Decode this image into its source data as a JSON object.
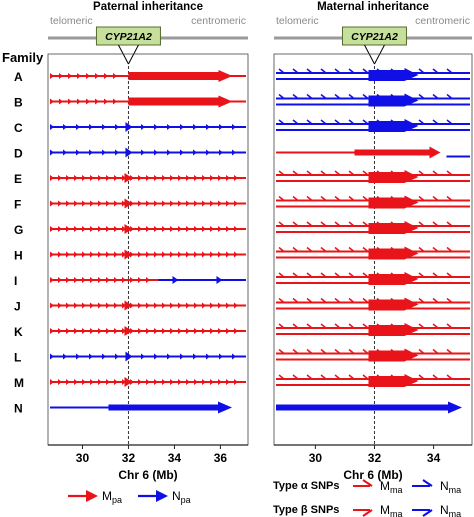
{
  "colors": {
    "red": "#e8141a",
    "blue": "#1010e6",
    "gene_fill": "#c6df9a",
    "chrom": "#9a9a9a",
    "axis": "#222222"
  },
  "family_header": "Family",
  "families": [
    "A",
    "B",
    "C",
    "D",
    "E",
    "F",
    "G",
    "H",
    "I",
    "J",
    "K",
    "L",
    "M",
    "N"
  ],
  "gene_name": "CYP21A2",
  "telomeric_label": "telomeric",
  "centromeric_label": "centromeric",
  "panels": [
    {
      "title": "Paternal inheritance",
      "xlim": [
        28.5,
        37.2
      ],
      "ticks": [
        30,
        32,
        34,
        36
      ],
      "xlabel": "Chr 6 (Mb)",
      "gene_pos": 32,
      "tracks": [
        {
          "family": "A",
          "style": "red_split"
        },
        {
          "family": "B",
          "style": "red_split"
        },
        {
          "family": "C",
          "style": "blue_dense"
        },
        {
          "family": "D",
          "style": "blue_dense"
        },
        {
          "family": "E",
          "style": "red_dense"
        },
        {
          "family": "F",
          "style": "red_dense"
        },
        {
          "family": "G",
          "style": "red_dense"
        },
        {
          "family": "H",
          "style": "red_dense"
        },
        {
          "family": "I",
          "style": "red_then_blue"
        },
        {
          "family": "J",
          "style": "red_dense"
        },
        {
          "family": "K",
          "style": "red_dense"
        },
        {
          "family": "L",
          "style": "blue_dense"
        },
        {
          "family": "M",
          "style": "red_dense"
        },
        {
          "family": "N",
          "style": "blue_thick"
        }
      ]
    },
    {
      "title": "Maternal inheritance",
      "xlim": [
        28.6,
        35.3
      ],
      "ticks": [
        30,
        32,
        34
      ],
      "xlabel": "Chr 6 (Mb)",
      "gene_pos": 32,
      "tracks": [
        {
          "family": "A",
          "style": "blue_double"
        },
        {
          "family": "B",
          "style": "blue_double"
        },
        {
          "family": "C",
          "style": "blue_double"
        },
        {
          "family": "D",
          "style": "red_single"
        },
        {
          "family": "E",
          "style": "red_double"
        },
        {
          "family": "F",
          "style": "red_double"
        },
        {
          "family": "G",
          "style": "red_double"
        },
        {
          "family": "H",
          "style": "red_double"
        },
        {
          "family": "I",
          "style": "red_double"
        },
        {
          "family": "J",
          "style": "red_double"
        },
        {
          "family": "K",
          "style": "red_double"
        },
        {
          "family": "L",
          "style": "red_double"
        },
        {
          "family": "M",
          "style": "red_double"
        },
        {
          "family": "N",
          "style": "blue_single"
        }
      ]
    }
  ],
  "legend": {
    "m_pa": "M",
    "m_pa_sub": "pa",
    "n_pa": "N",
    "n_pa_sub": "pa",
    "type_alpha": "Type α SNPs",
    "type_beta": "Type β SNPs",
    "m_ma": "M",
    "m_ma_sub": "ma",
    "n_ma": "N",
    "n_ma_sub": "ma"
  }
}
